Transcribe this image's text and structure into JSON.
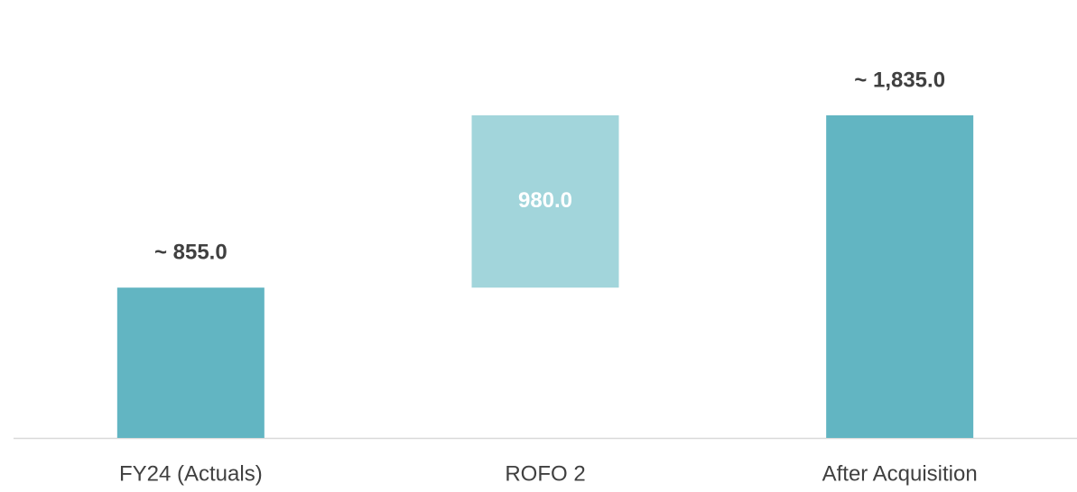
{
  "chart_data": {
    "type": "waterfall",
    "categories": [
      "FY24 (Actuals)",
      "ROFO 2",
      "After Acquisition"
    ],
    "values": [
      855.0,
      980.0,
      1835.0
    ],
    "value_labels": [
      "~ 855.0",
      "980.0",
      "~ 1,835.0"
    ],
    "measures": [
      "absolute",
      "relative",
      "total"
    ],
    "colors": [
      "#62b5c2",
      "#a2d5db",
      "#62b5c2"
    ]
  }
}
